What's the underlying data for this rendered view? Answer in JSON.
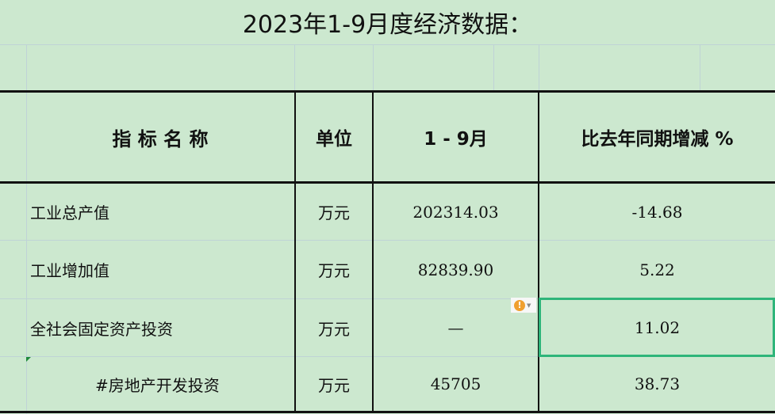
{
  "title": "2023年1-9月度经济数据：",
  "table": {
    "headers": [
      "指 标 名 称",
      "单位",
      "1 - 9月",
      "比去年同期增减 %"
    ],
    "rows": [
      {
        "name": "工业总产值",
        "unit": "万元",
        "value": "202314.03",
        "change": "-14.68"
      },
      {
        "name": "工业增加值",
        "unit": "万元",
        "value": "82839.90",
        "change": "5.22"
      },
      {
        "name": "全社会固定资产投资",
        "unit": "万元",
        "value": "—",
        "change": "11.02"
      },
      {
        "name": "#房地产开发投资",
        "unit": "万元",
        "value": "45705",
        "change": "38.73"
      }
    ]
  },
  "colors": {
    "background": "#cce8cf",
    "selection": "#2eb57a",
    "warning": "#f0a030"
  },
  "icons": {
    "warning": "exclamation-circle-icon"
  }
}
